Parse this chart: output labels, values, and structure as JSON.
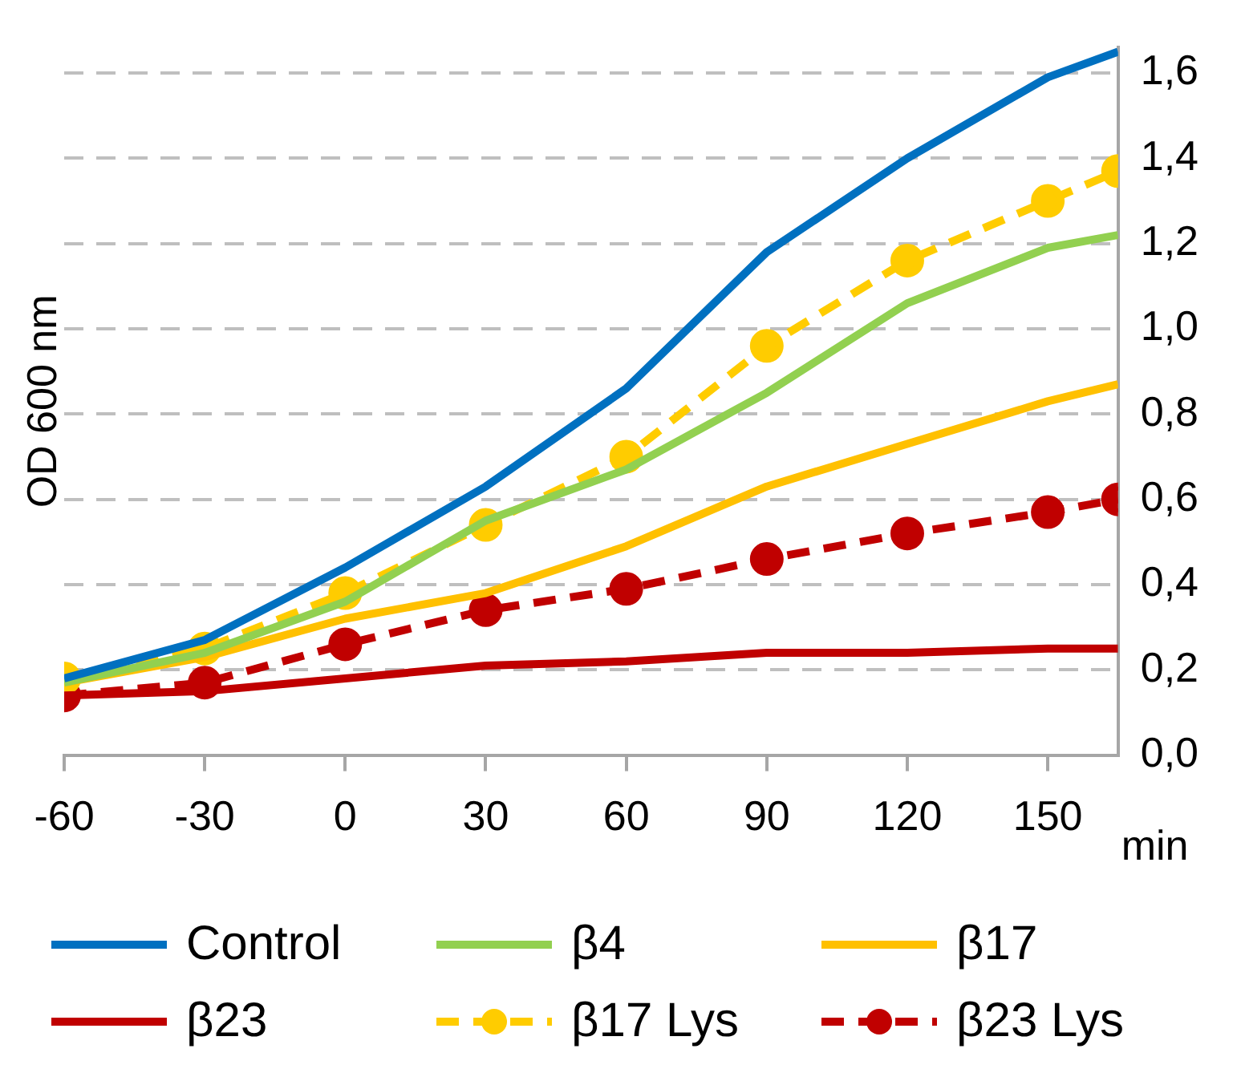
{
  "chart_data": {
    "type": "line",
    "ylabel": "OD 600 nm",
    "xlabel": "min",
    "x": [
      -60,
      -30,
      0,
      30,
      60,
      90,
      120,
      150,
      165
    ],
    "xlim": [
      -60,
      165
    ],
    "xticks": [
      -60,
      -30,
      0,
      30,
      60,
      90,
      120,
      150
    ],
    "ylim": [
      0,
      1.66
    ],
    "yticks": [
      {
        "value": 0,
        "label": "0,0"
      },
      {
        "value": 0.2,
        "label": "0,2"
      },
      {
        "value": 0.4,
        "label": "0,4"
      },
      {
        "value": 0.6,
        "label": "0,6"
      },
      {
        "value": 0.8,
        "label": "0,8"
      },
      {
        "value": 1.0,
        "label": "1,0"
      },
      {
        "value": 1.2,
        "label": "1,2"
      },
      {
        "value": 1.4,
        "label": "1,4"
      },
      {
        "value": 1.6,
        "label": "1,6"
      }
    ],
    "grid": "y",
    "legend": "bottom",
    "series": [
      {
        "name": "Control",
        "color": "#0070c0",
        "values": [
          0.18,
          0.27,
          0.44,
          0.63,
          0.86,
          1.18,
          1.4,
          1.59,
          1.65
        ]
      },
      {
        "name": "β4",
        "color": "#92d050",
        "values": [
          0.17,
          0.24,
          0.36,
          0.55,
          0.67,
          0.85,
          1.06,
          1.19,
          1.22
        ]
      },
      {
        "name": "β17",
        "color": "#ffc000",
        "values": [
          0.17,
          0.23,
          0.32,
          0.38,
          0.49,
          0.63,
          0.73,
          0.83,
          0.87
        ]
      },
      {
        "name": "β23",
        "color": "#c00000",
        "values": [
          0.14,
          0.15,
          0.18,
          0.21,
          0.22,
          0.24,
          0.24,
          0.25,
          0.25
        ]
      },
      {
        "name": "β17 Lys",
        "color": "#ffcc00",
        "marker": "circle",
        "line_style": "dashed",
        "values": [
          0.18,
          0.25,
          0.38,
          0.54,
          0.7,
          0.96,
          1.16,
          1.3,
          1.37
        ]
      },
      {
        "name": "β23 Lys",
        "color": "#c00000",
        "marker": "circle",
        "line_style": "dashed",
        "values": [
          0.14,
          0.17,
          0.26,
          0.34,
          0.39,
          0.46,
          0.52,
          0.57,
          0.6
        ]
      }
    ]
  }
}
